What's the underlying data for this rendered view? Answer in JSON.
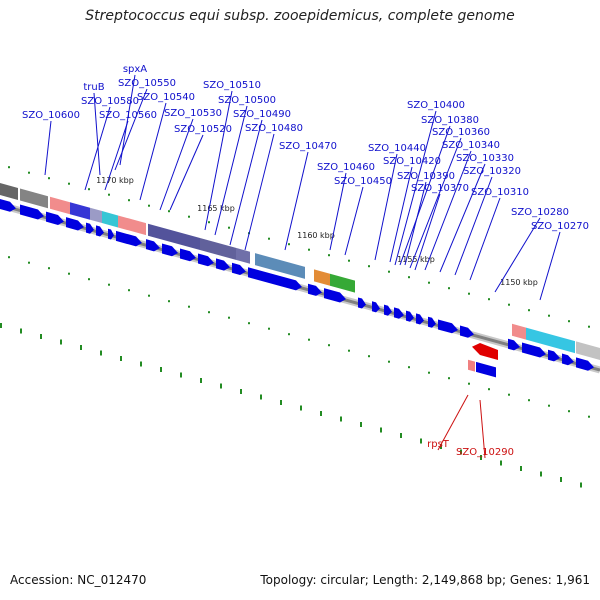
{
  "title": "Streptococcus equi subsp. zooepidemicus, complete genome",
  "footer": {
    "accession": "Accession: NC_012470",
    "summary": "Topology: circular; Length: 2,149,868 bp; Genes: 1,961"
  },
  "ticks": [
    {
      "label": "1170 kbp"
    },
    {
      "label": "1165 kbp"
    },
    {
      "label": "1160 kbp"
    },
    {
      "label": "1155 kbp"
    },
    {
      "label": "1150 kbp"
    }
  ],
  "gene_labels": [
    {
      "text": "spxA",
      "color": "#1010cc"
    },
    {
      "text": "SZO_10550",
      "color": "#1010cc"
    },
    {
      "text": "truB",
      "color": "#1010cc"
    },
    {
      "text": "SZO_10540",
      "color": "#1010cc"
    },
    {
      "text": "SZO_10580",
      "color": "#1010cc"
    },
    {
      "text": "SZO_10600",
      "color": "#1010cc"
    },
    {
      "text": "SZO_10560",
      "color": "#1010cc"
    },
    {
      "text": "SZO_10530",
      "color": "#1010cc"
    },
    {
      "text": "SZO_10520",
      "color": "#1010cc"
    },
    {
      "text": "SZO_10510",
      "color": "#1010cc"
    },
    {
      "text": "SZO_10500",
      "color": "#1010cc"
    },
    {
      "text": "SZO_10490",
      "color": "#1010cc"
    },
    {
      "text": "SZO_10480",
      "color": "#1010cc"
    },
    {
      "text": "SZO_10470",
      "color": "#1010cc"
    },
    {
      "text": "SZO_10460",
      "color": "#1010cc"
    },
    {
      "text": "SZO_10450",
      "color": "#1010cc"
    },
    {
      "text": "SZO_10440",
      "color": "#1010cc"
    },
    {
      "text": "SZO_10420",
      "color": "#1010cc"
    },
    {
      "text": "SZO_10400",
      "color": "#1010cc"
    },
    {
      "text": "SZO_10380",
      "color": "#1010cc"
    },
    {
      "text": "SZO_10360",
      "color": "#1010cc"
    },
    {
      "text": "SZO_10390",
      "color": "#1010cc"
    },
    {
      "text": "SZO_10340",
      "color": "#1010cc"
    },
    {
      "text": "SZO_10370",
      "color": "#1010cc"
    },
    {
      "text": "SZO_10330",
      "color": "#1010cc"
    },
    {
      "text": "SZO_10320",
      "color": "#1010cc"
    },
    {
      "text": "SZO_10310",
      "color": "#1010cc"
    },
    {
      "text": "SZO_10280",
      "color": "#1010cc"
    },
    {
      "text": "SZO_10270",
      "color": "#1010cc"
    },
    {
      "text": "rpsT",
      "color": "#cc1010"
    },
    {
      "text": "SZO_10290",
      "color": "#cc1010"
    }
  ],
  "colors": {
    "backbone": "#808080",
    "cds_forward": "#0000e0",
    "cds_reverse": "#e00000",
    "gc_skew": "#228b22"
  }
}
